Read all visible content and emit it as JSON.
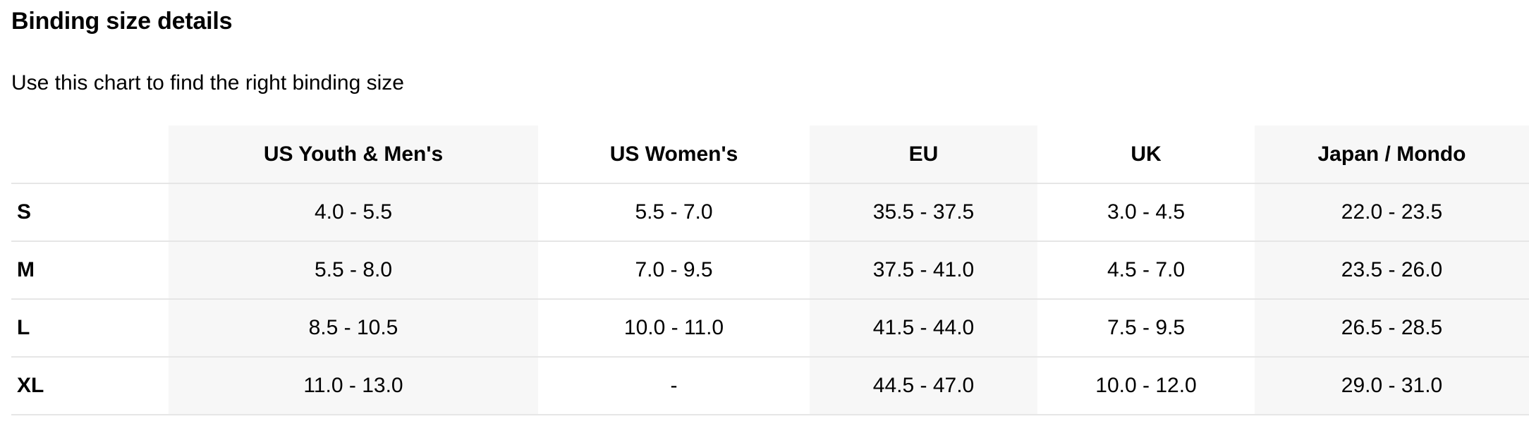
{
  "heading": "Binding size details",
  "subheading": "Use this chart to find the right binding size",
  "table": {
    "columns": [
      "",
      "US Youth & Men's",
      "US Women's",
      "EU",
      "UK",
      "Japan / Mondo"
    ],
    "rows": [
      [
        "S",
        "4.0 - 5.5",
        "5.5 - 7.0",
        "35.5 - 37.5",
        "3.0 - 4.5",
        "22.0 - 23.5"
      ],
      [
        "M",
        "5.5 - 8.0",
        "7.0 - 9.5",
        "37.5 - 41.0",
        "4.5 - 7.0",
        "23.5 - 26.0"
      ],
      [
        "L",
        "8.5 - 10.5",
        "10.0 - 11.0",
        "41.5 - 44.0",
        "7.5 - 9.5",
        "26.5 - 28.5"
      ],
      [
        "XL",
        "11.0 - 13.0",
        "-",
        "44.5 - 47.0",
        "10.0 - 12.0",
        "29.0 - 31.0"
      ]
    ],
    "shaded_column_color": "#f7f7f7",
    "divider_color": "#e6e6e6"
  }
}
